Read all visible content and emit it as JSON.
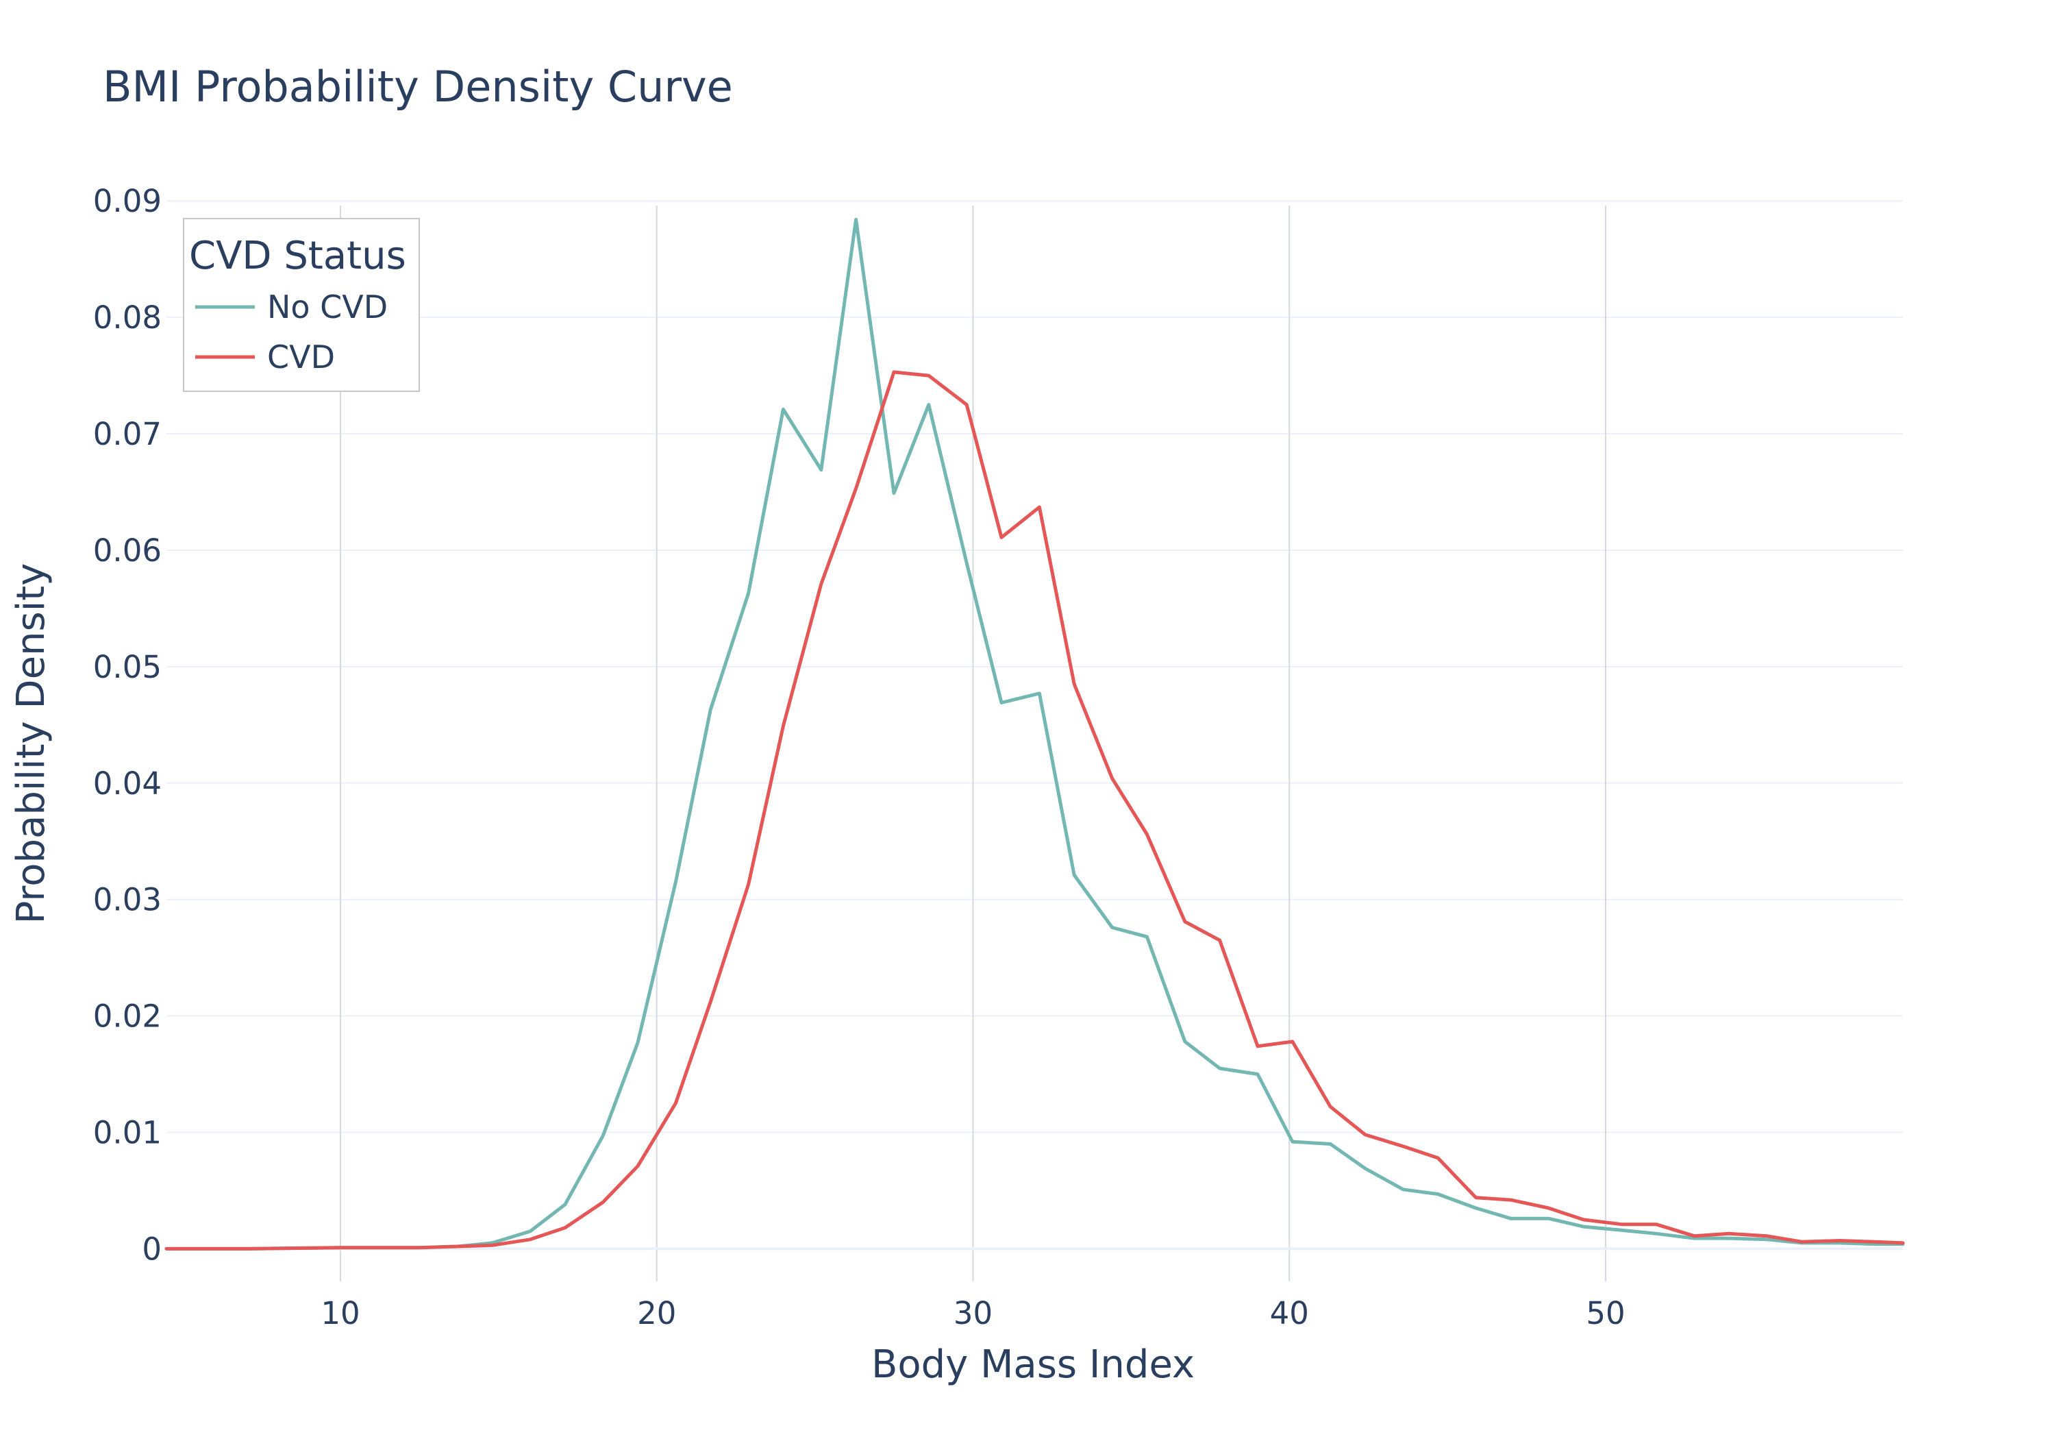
{
  "chart_data": {
    "type": "line",
    "title": "BMI Probability Density Curve",
    "xlabel": "Body Mass Index",
    "ylabel": "Probability Density",
    "xlim": [
      4.5,
      59.4
    ],
    "ylim": [
      -0.0028,
      0.0896
    ],
    "x_ticks": [
      10,
      20,
      30,
      40,
      50
    ],
    "y_ticks": [
      0,
      0.01,
      0.02,
      0.03,
      0.04,
      0.05,
      0.06,
      0.07,
      0.08,
      0.09
    ],
    "y_tick_labels": [
      "0",
      "0.01",
      "0.02",
      "0.03",
      "0.04",
      "0.05",
      "0.06",
      "0.07",
      "0.08",
      "0.09"
    ],
    "grid": true,
    "legend": {
      "title": "CVD Status",
      "placement": "top-left"
    },
    "series": [
      {
        "name": "No CVD",
        "color": "#72b7b2",
        "points": [
          [
            4.5,
            0
          ],
          [
            7.0,
            0
          ],
          [
            10.0,
            0.0001
          ],
          [
            12.5,
            0.0001
          ],
          [
            13.7,
            0.0002
          ],
          [
            14.8,
            0.0005
          ],
          [
            16.0,
            0.0015
          ],
          [
            17.1,
            0.0038
          ],
          [
            18.3,
            0.0097
          ],
          [
            19.4,
            0.0177
          ],
          [
            20.6,
            0.0315
          ],
          [
            21.7,
            0.0463
          ],
          [
            22.9,
            0.0563
          ],
          [
            24.0,
            0.0721
          ],
          [
            25.2,
            0.0669
          ],
          [
            26.3,
            0.0884
          ],
          [
            27.5,
            0.0649
          ],
          [
            28.6,
            0.0725
          ],
          [
            29.8,
            0.0589
          ],
          [
            30.9,
            0.0469
          ],
          [
            32.1,
            0.0477
          ],
          [
            33.2,
            0.0321
          ],
          [
            34.4,
            0.0276
          ],
          [
            35.5,
            0.0268
          ],
          [
            36.7,
            0.0178
          ],
          [
            37.8,
            0.0155
          ],
          [
            39.0,
            0.015
          ],
          [
            40.1,
            0.0092
          ],
          [
            41.3,
            0.009
          ],
          [
            42.4,
            0.0069
          ],
          [
            43.6,
            0.0051
          ],
          [
            44.7,
            0.0047
          ],
          [
            45.9,
            0.0035
          ],
          [
            47.0,
            0.0026
          ],
          [
            48.2,
            0.0026
          ],
          [
            49.3,
            0.0019
          ],
          [
            50.5,
            0.0016
          ],
          [
            51.6,
            0.0013
          ],
          [
            52.8,
            0.0009
          ],
          [
            53.9,
            0.0009
          ],
          [
            55.1,
            0.0008
          ],
          [
            56.2,
            0.0005
          ],
          [
            57.4,
            0.0005
          ],
          [
            58.5,
            0.0004
          ],
          [
            59.4,
            0.0004
          ]
        ]
      },
      {
        "name": "CVD",
        "color": "#e45756",
        "points": [
          [
            4.5,
            0
          ],
          [
            7.0,
            0
          ],
          [
            10.0,
            0.0001
          ],
          [
            12.5,
            0.0001
          ],
          [
            13.7,
            0.0002
          ],
          [
            14.8,
            0.0003
          ],
          [
            16.0,
            0.0008
          ],
          [
            17.1,
            0.0018
          ],
          [
            18.3,
            0.004
          ],
          [
            19.4,
            0.0071
          ],
          [
            20.6,
            0.0125
          ],
          [
            21.7,
            0.0212
          ],
          [
            22.9,
            0.0313
          ],
          [
            24.0,
            0.0449
          ],
          [
            25.2,
            0.0571
          ],
          [
            26.3,
            0.0653
          ],
          [
            27.5,
            0.0753
          ],
          [
            28.6,
            0.075
          ],
          [
            29.8,
            0.0725
          ],
          [
            30.9,
            0.0611
          ],
          [
            32.1,
            0.0637
          ],
          [
            33.2,
            0.0485
          ],
          [
            34.4,
            0.0404
          ],
          [
            35.5,
            0.0356
          ],
          [
            36.7,
            0.0281
          ],
          [
            37.8,
            0.0265
          ],
          [
            39.0,
            0.0174
          ],
          [
            40.1,
            0.0178
          ],
          [
            41.3,
            0.0122
          ],
          [
            42.4,
            0.0098
          ],
          [
            43.6,
            0.0088
          ],
          [
            44.7,
            0.0078
          ],
          [
            45.9,
            0.0044
          ],
          [
            47.0,
            0.0042
          ],
          [
            48.2,
            0.0035
          ],
          [
            49.3,
            0.0025
          ],
          [
            50.5,
            0.0021
          ],
          [
            51.6,
            0.0021
          ],
          [
            52.8,
            0.0011
          ],
          [
            53.9,
            0.0013
          ],
          [
            55.1,
            0.0011
          ],
          [
            56.2,
            0.0006
          ],
          [
            57.4,
            0.0007
          ],
          [
            58.5,
            0.0006
          ],
          [
            59.4,
            0.0005
          ]
        ]
      }
    ]
  }
}
